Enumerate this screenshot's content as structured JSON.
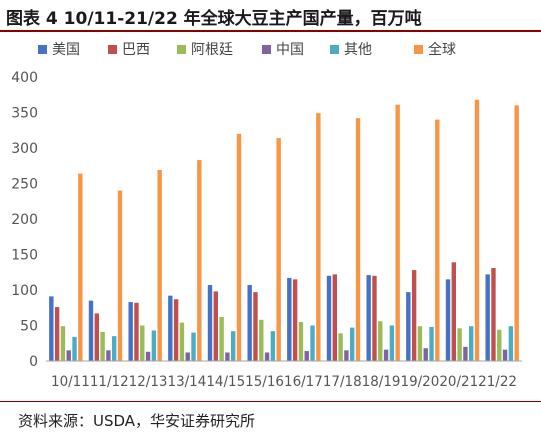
{
  "title": "图表 4 10/11-21/22 年全球大豆主产国产量，百万吨",
  "source": "资料来源：USDA，华安证券研究所",
  "chart_data": {
    "type": "bar",
    "categories": [
      "10/11",
      "11/12",
      "12/13",
      "13/14",
      "14/15",
      "15/16",
      "16/17",
      "17/18",
      "18/19",
      "19/20",
      "20/21",
      "21/22"
    ],
    "x_tick_text": "10/1111/1212/1313/1414/1515/1616/1717/1818/1919/2020/2121/22",
    "ylim": [
      0,
      400
    ],
    "yticks": [
      0,
      50,
      100,
      150,
      200,
      250,
      300,
      350,
      400
    ],
    "legend_position": "top",
    "grid": false,
    "series": [
      {
        "name": "美国",
        "color": "#4472C4",
        "values": [
          91,
          85,
          83,
          92,
          107,
          107,
          117,
          120,
          121,
          97,
          115,
          122
        ]
      },
      {
        "name": "巴西",
        "color": "#C0504D",
        "values": [
          76,
          67,
          82,
          87,
          98,
          97,
          115,
          122,
          120,
          128,
          139,
          131
        ]
      },
      {
        "name": "阿根廷",
        "color": "#9BBB59",
        "values": [
          49,
          41,
          50,
          54,
          62,
          58,
          55,
          39,
          56,
          49,
          46,
          44
        ]
      },
      {
        "name": "中国",
        "color": "#8064A2",
        "values": [
          15,
          15,
          13,
          12,
          12,
          12,
          14,
          15,
          16,
          18,
          20,
          16
        ]
      },
      {
        "name": "其他",
        "color": "#4BACC6",
        "values": [
          34,
          35,
          43,
          40,
          42,
          42,
          50,
          47,
          50,
          48,
          49,
          49
        ]
      },
      {
        "name": "全球",
        "color": "#F79646",
        "values": [
          264,
          240,
          269,
          283,
          320,
          314,
          349,
          342,
          361,
          340,
          368,
          360
        ]
      }
    ]
  }
}
